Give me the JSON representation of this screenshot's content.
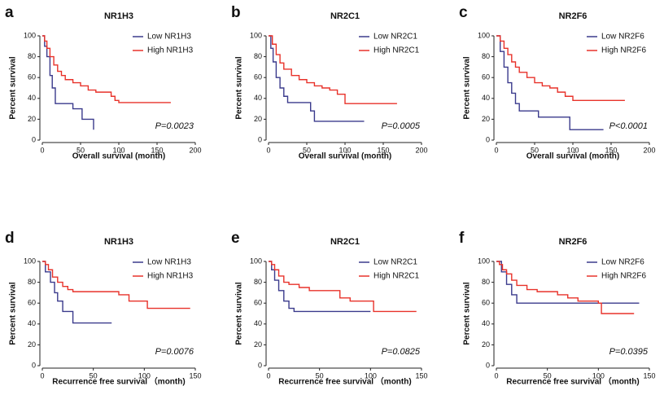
{
  "chart_data": [
    {
      "type": "line",
      "panel_label": "a",
      "title": "NR1H3",
      "xlabel": "Overall survival (month)",
      "ylabel": "Percent survival",
      "annotation": "P=0.0023",
      "xlim": [
        0,
        200
      ],
      "xticks": [
        0,
        50,
        100,
        150,
        200
      ],
      "ylim": [
        0,
        100
      ],
      "yticks": [
        0,
        20,
        40,
        60,
        80,
        100
      ],
      "step": true,
      "legend": "upper right",
      "series": [
        {
          "name": "Low NR1H3",
          "color": "#3a3a8c",
          "x": [
            0,
            3,
            6,
            10,
            13,
            17,
            40,
            52,
            67
          ],
          "values": [
            100,
            90,
            80,
            62,
            50,
            35,
            30,
            20,
            10
          ]
        },
        {
          "name": "High NR1H3",
          "color": "#e8322a",
          "x": [
            0,
            3,
            6,
            10,
            15,
            20,
            25,
            30,
            40,
            50,
            60,
            70,
            90,
            95,
            100,
            168
          ],
          "values": [
            100,
            95,
            88,
            80,
            72,
            66,
            62,
            58,
            55,
            52,
            48,
            46,
            42,
            38,
            36,
            36
          ]
        }
      ]
    },
    {
      "type": "line",
      "panel_label": "b",
      "title": "NR2C1",
      "xlabel": "Overall survival (month)",
      "ylabel": "Percent survival",
      "annotation": "P=0.0005",
      "xlim": [
        0,
        200
      ],
      "xticks": [
        0,
        50,
        100,
        150,
        200
      ],
      "ylim": [
        0,
        100
      ],
      "yticks": [
        0,
        20,
        40,
        60,
        80,
        100
      ],
      "step": true,
      "legend": "upper right",
      "series": [
        {
          "name": "Low NR2C1",
          "color": "#3a3a8c",
          "x": [
            0,
            3,
            6,
            10,
            15,
            20,
            25,
            55,
            60,
            125
          ],
          "values": [
            100,
            88,
            75,
            60,
            50,
            42,
            36,
            28,
            18,
            18
          ]
        },
        {
          "name": "High NR2C1",
          "color": "#e8322a",
          "x": [
            0,
            5,
            10,
            15,
            20,
            30,
            40,
            50,
            60,
            70,
            80,
            90,
            100,
            168
          ],
          "values": [
            100,
            92,
            82,
            74,
            68,
            62,
            58,
            55,
            52,
            50,
            48,
            44,
            35,
            35
          ]
        }
      ]
    },
    {
      "type": "line",
      "panel_label": "c",
      "title": "NR2F6",
      "xlabel": "Overall survival (month)",
      "ylabel": "Percent survival",
      "annotation": "P<0.0001",
      "xlim": [
        0,
        200
      ],
      "xticks": [
        0,
        50,
        100,
        150,
        200
      ],
      "ylim": [
        0,
        100
      ],
      "yticks": [
        0,
        20,
        40,
        60,
        80,
        100
      ],
      "step": true,
      "legend": "upper right",
      "series": [
        {
          "name": "Low NR2F6",
          "color": "#3a3a8c",
          "x": [
            0,
            5,
            10,
            15,
            20,
            25,
            30,
            55,
            96,
            140
          ],
          "values": [
            100,
            85,
            70,
            55,
            45,
            35,
            28,
            22,
            10,
            10
          ]
        },
        {
          "name": "High NR2F6",
          "color": "#e8322a",
          "x": [
            0,
            5,
            10,
            15,
            20,
            25,
            30,
            40,
            50,
            60,
            70,
            80,
            90,
            100,
            168
          ],
          "values": [
            100,
            95,
            88,
            82,
            75,
            70,
            65,
            60,
            55,
            52,
            50,
            46,
            42,
            38,
            38
          ]
        }
      ]
    },
    {
      "type": "line",
      "panel_label": "d",
      "title": "NR1H3",
      "xlabel": "Recurrence free survival （month)",
      "ylabel": "Percent survival",
      "annotation": "P=0.0076",
      "xlim": [
        0,
        150
      ],
      "xticks": [
        0,
        50,
        100,
        150
      ],
      "ylim": [
        0,
        100
      ],
      "yticks": [
        0,
        20,
        40,
        60,
        80,
        100
      ],
      "step": true,
      "legend": "upper right",
      "series": [
        {
          "name": "Low NR1H3",
          "color": "#3a3a8c",
          "x": [
            0,
            3,
            8,
            12,
            15,
            20,
            30,
            68
          ],
          "values": [
            100,
            90,
            80,
            70,
            62,
            52,
            41,
            41
          ]
        },
        {
          "name": "High NR1H3",
          "color": "#e8322a",
          "x": [
            0,
            3,
            6,
            10,
            15,
            20,
            25,
            30,
            75,
            85,
            103,
            145
          ],
          "values": [
            100,
            97,
            92,
            85,
            80,
            76,
            73,
            71,
            68,
            62,
            55,
            55
          ]
        }
      ]
    },
    {
      "type": "line",
      "panel_label": "e",
      "title": "NR2C1",
      "xlabel": "Recurrence free survival （month)",
      "ylabel": "Percent survival",
      "annotation": "P=0.0825",
      "xlim": [
        0,
        150
      ],
      "xticks": [
        0,
        50,
        100,
        150
      ],
      "ylim": [
        0,
        100
      ],
      "yticks": [
        0,
        20,
        40,
        60,
        80,
        100
      ],
      "step": true,
      "legend": "upper right",
      "series": [
        {
          "name": "Low NR2C1",
          "color": "#3a3a8c",
          "x": [
            0,
            3,
            6,
            10,
            15,
            20,
            25,
            100
          ],
          "values": [
            100,
            92,
            82,
            72,
            62,
            55,
            52,
            52
          ]
        },
        {
          "name": "High NR2C1",
          "color": "#e8322a",
          "x": [
            0,
            3,
            6,
            10,
            15,
            20,
            30,
            40,
            70,
            80,
            103,
            145
          ],
          "values": [
            100,
            97,
            92,
            86,
            80,
            78,
            75,
            72,
            65,
            62,
            52,
            52
          ]
        }
      ]
    },
    {
      "type": "line",
      "panel_label": "f",
      "title": "NR2F6",
      "xlabel": "Recurrence free survival （month)",
      "ylabel": "Percent survival",
      "annotation": "P=0.0395",
      "xlim": [
        0,
        150
      ],
      "xticks": [
        0,
        50,
        100,
        150
      ],
      "ylim": [
        0,
        100
      ],
      "yticks": [
        0,
        20,
        40,
        60,
        80,
        100
      ],
      "step": true,
      "legend": "upper right",
      "series": [
        {
          "name": "Low NR2F6",
          "color": "#3a3a8c",
          "x": [
            0,
            5,
            10,
            15,
            20,
            140
          ],
          "values": [
            100,
            90,
            78,
            68,
            60,
            60
          ]
        },
        {
          "name": "High NR2F6",
          "color": "#e8322a",
          "x": [
            0,
            3,
            6,
            10,
            15,
            20,
            30,
            40,
            60,
            70,
            80,
            100,
            103,
            135
          ],
          "values": [
            100,
            97,
            92,
            88,
            82,
            77,
            73,
            71,
            68,
            65,
            62,
            60,
            50,
            50
          ]
        }
      ]
    }
  ]
}
